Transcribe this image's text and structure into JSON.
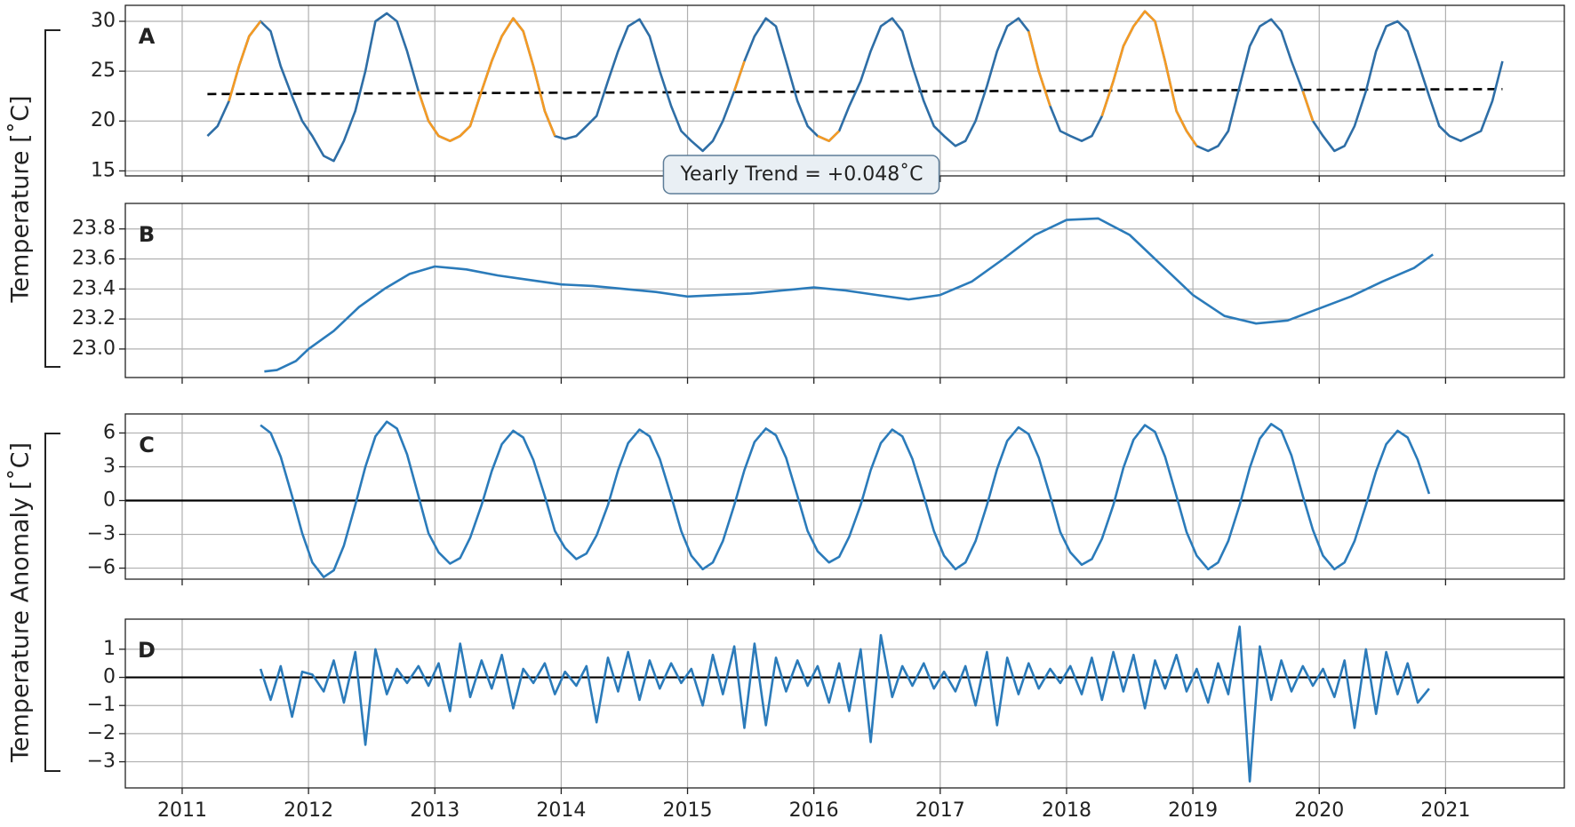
{
  "chart_data": [
    {
      "type": "line",
      "panel_label": "A",
      "x": [
        2011.2,
        2011.28,
        2011.37,
        2011.45,
        2011.53,
        2011.62,
        2011.7,
        2011.78,
        2011.87,
        2011.95,
        2012.03,
        2012.12,
        2012.2,
        2012.28,
        2012.37,
        2012.45,
        2012.53,
        2012.62,
        2012.7,
        2012.78,
        2012.87,
        2012.95,
        2013.03,
        2013.12,
        2013.2,
        2013.28,
        2013.37,
        2013.45,
        2013.53,
        2013.62,
        2013.7,
        2013.78,
        2013.87,
        2013.95,
        2014.03,
        2014.12,
        2014.2,
        2014.28,
        2014.37,
        2014.45,
        2014.53,
        2014.62,
        2014.7,
        2014.78,
        2014.87,
        2014.95,
        2015.03,
        2015.12,
        2015.2,
        2015.28,
        2015.37,
        2015.45,
        2015.53,
        2015.62,
        2015.7,
        2015.78,
        2015.87,
        2015.95,
        2016.03,
        2016.12,
        2016.2,
        2016.28,
        2016.37,
        2016.45,
        2016.53,
        2016.62,
        2016.7,
        2016.78,
        2016.87,
        2016.95,
        2017.03,
        2017.12,
        2017.2,
        2017.28,
        2017.37,
        2017.45,
        2017.53,
        2017.62,
        2017.7,
        2017.78,
        2017.87,
        2017.95,
        2018.03,
        2018.12,
        2018.2,
        2018.28,
        2018.37,
        2018.45,
        2018.53,
        2018.62,
        2018.7,
        2018.78,
        2018.87,
        2018.95,
        2019.03,
        2019.12,
        2019.2,
        2019.28,
        2019.37,
        2019.45,
        2019.53,
        2019.62,
        2019.7,
        2019.78,
        2019.87,
        2019.95,
        2020.03,
        2020.12,
        2020.2,
        2020.28,
        2020.37,
        2020.45,
        2020.53,
        2020.62,
        2020.7,
        2020.78,
        2020.87,
        2020.95,
        2021.03,
        2021.12,
        2021.2,
        2021.28,
        2021.37,
        2021.45
      ],
      "series": [
        {
          "color": "#2e6ea6",
          "values": [
            18.5,
            19.5,
            22,
            25.5,
            28.5,
            30,
            29,
            25.5,
            22.5,
            20,
            18.5,
            16.5,
            16,
            18,
            21,
            25,
            30,
            30.8,
            30,
            27,
            23,
            20,
            18.5,
            18,
            18.5,
            19.5,
            23,
            26,
            28.5,
            30.3,
            29,
            25.5,
            21,
            18.5,
            18.2,
            18.5,
            19.5,
            20.5,
            24,
            27,
            29.5,
            30.2,
            28.5,
            25,
            21.5,
            19,
            18,
            17,
            18,
            20,
            23,
            26,
            28.5,
            30.3,
            29.5,
            26,
            22,
            19.5,
            18.5,
            18,
            19,
            21.5,
            24,
            27,
            29.5,
            30.3,
            29,
            25.5,
            22,
            19.5,
            18.5,
            17.5,
            18,
            20,
            23.5,
            27,
            29.5,
            30.3,
            29,
            25,
            21.5,
            19,
            18.5,
            18,
            18.5,
            20.5,
            24,
            27.5,
            29.5,
            31,
            30,
            26,
            21,
            19,
            17.5,
            17,
            17.5,
            19,
            23.5,
            27.5,
            29.5,
            30.2,
            29,
            26,
            23,
            20,
            18.5,
            17,
            17.5,
            19.5,
            23,
            27,
            29.5,
            30,
            29,
            26,
            22.5,
            19.5,
            18.5,
            18,
            18.5,
            19,
            22,
            26
          ]
        },
        {
          "color": "#f59a23",
          "values": [
            null,
            null,
            22,
            25.5,
            28.5,
            30,
            null,
            null,
            null,
            null,
            null,
            null,
            null,
            null,
            null,
            null,
            null,
            null,
            null,
            null,
            23,
            20,
            18.5,
            18,
            18.5,
            19.5,
            23,
            26,
            28.5,
            30.3,
            29,
            25.5,
            21,
            18.5,
            null,
            null,
            null,
            null,
            null,
            null,
            null,
            null,
            null,
            null,
            null,
            null,
            null,
            null,
            null,
            null,
            23,
            26,
            null,
            null,
            null,
            null,
            null,
            null,
            18.5,
            18,
            19,
            null,
            null,
            null,
            null,
            null,
            null,
            null,
            null,
            null,
            null,
            null,
            null,
            null,
            null,
            null,
            null,
            null,
            29,
            25,
            21.5,
            null,
            null,
            null,
            null,
            20.5,
            24,
            27.5,
            29.5,
            31,
            30,
            26,
            21,
            19,
            17.5,
            null,
            null,
            null,
            null,
            null,
            null,
            null,
            null,
            null,
            23,
            20,
            null,
            null,
            null,
            null,
            null,
            null,
            null,
            null,
            null,
            null,
            null,
            null,
            null,
            null,
            null,
            null,
            null,
            null
          ]
        }
      ],
      "trend": {
        "x": [
          2011.2,
          2021.45
        ],
        "values": [
          22.7,
          23.2
        ],
        "color": "#000000"
      },
      "annotation": "Yearly Trend = +0.048˚C",
      "xlim": [
        2010.55,
        2021.94
      ],
      "xticks": [
        2011,
        2012,
        2013,
        2014,
        2015,
        2016,
        2017,
        2018,
        2019,
        2020,
        2021
      ],
      "show_xtick_labels": false,
      "ylim": [
        14.5,
        31.6
      ],
      "yticks": [
        15,
        20,
        25,
        30
      ],
      "grid": true
    },
    {
      "type": "line",
      "panel_label": "B",
      "x": [
        2011.65,
        2011.75,
        2011.9,
        2012.0,
        2012.2,
        2012.4,
        2012.6,
        2012.8,
        2013.0,
        2013.25,
        2013.5,
        2013.75,
        2014.0,
        2014.25,
        2014.5,
        2014.75,
        2015.0,
        2015.25,
        2015.5,
        2015.75,
        2016.0,
        2016.25,
        2016.5,
        2016.75,
        2017.0,
        2017.25,
        2017.5,
        2017.75,
        2018.0,
        2018.25,
        2018.5,
        2018.75,
        2019.0,
        2019.25,
        2019.5,
        2019.75,
        2020.0,
        2020.25,
        2020.5,
        2020.75,
        2020.9
      ],
      "series": [
        {
          "color": "#2b7bba",
          "values": [
            22.85,
            22.86,
            22.92,
            23.0,
            23.12,
            23.28,
            23.4,
            23.5,
            23.55,
            23.53,
            23.49,
            23.46,
            23.43,
            23.42,
            23.4,
            23.38,
            23.35,
            23.36,
            23.37,
            23.39,
            23.41,
            23.39,
            23.36,
            23.33,
            23.36,
            23.45,
            23.6,
            23.76,
            23.86,
            23.87,
            23.76,
            23.56,
            23.36,
            23.22,
            23.17,
            23.19,
            23.27,
            23.35,
            23.45,
            23.54,
            23.63
          ]
        }
      ],
      "xlim": [
        2010.55,
        2021.94
      ],
      "xticks": [
        2011,
        2012,
        2013,
        2014,
        2015,
        2016,
        2017,
        2018,
        2019,
        2020,
        2021
      ],
      "show_xtick_labels": false,
      "ylim": [
        22.81,
        23.97
      ],
      "yticks": [
        {
          "value": 23,
          "label": "23.0"
        },
        23.2,
        23.4,
        23.6,
        23.8
      ],
      "grid": true
    },
    {
      "type": "line",
      "panel_label": "C",
      "x": [
        2011.62,
        2011.7,
        2011.78,
        2011.87,
        2011.95,
        2012.03,
        2012.12,
        2012.2,
        2012.28,
        2012.37,
        2012.45,
        2012.53,
        2012.62,
        2012.7,
        2012.78,
        2012.87,
        2012.95,
        2013.03,
        2013.12,
        2013.2,
        2013.28,
        2013.37,
        2013.45,
        2013.53,
        2013.62,
        2013.7,
        2013.78,
        2013.87,
        2013.95,
        2014.03,
        2014.12,
        2014.2,
        2014.28,
        2014.37,
        2014.45,
        2014.53,
        2014.62,
        2014.7,
        2014.78,
        2014.87,
        2014.95,
        2015.03,
        2015.12,
        2015.2,
        2015.28,
        2015.37,
        2015.45,
        2015.53,
        2015.62,
        2015.7,
        2015.78,
        2015.87,
        2015.95,
        2016.03,
        2016.12,
        2016.2,
        2016.28,
        2016.37,
        2016.45,
        2016.53,
        2016.62,
        2016.7,
        2016.78,
        2016.87,
        2016.95,
        2017.03,
        2017.12,
        2017.2,
        2017.28,
        2017.37,
        2017.45,
        2017.53,
        2017.62,
        2017.7,
        2017.78,
        2017.87,
        2017.95,
        2018.03,
        2018.12,
        2018.2,
        2018.28,
        2018.37,
        2018.45,
        2018.53,
        2018.62,
        2018.7,
        2018.78,
        2018.87,
        2018.95,
        2019.03,
        2019.12,
        2019.2,
        2019.28,
        2019.37,
        2019.45,
        2019.53,
        2019.62,
        2019.7,
        2019.78,
        2019.87,
        2019.95,
        2020.03,
        2020.12,
        2020.2,
        2020.28,
        2020.37,
        2020.45,
        2020.53,
        2020.62,
        2020.7,
        2020.78,
        2020.87
      ],
      "series": [
        {
          "color": "#2b7bba",
          "values": [
            6.7,
            6.0,
            3.9,
            0.4,
            -2.9,
            -5.5,
            -6.8,
            -6.2,
            -4.0,
            -0.4,
            3.0,
            5.7,
            7.0,
            6.4,
            4.1,
            0.4,
            -2.9,
            -4.6,
            -5.6,
            -5.1,
            -3.3,
            -0.4,
            2.6,
            5.0,
            6.2,
            5.6,
            3.6,
            0.4,
            -2.7,
            -4.2,
            -5.2,
            -4.7,
            -3.1,
            -0.4,
            2.7,
            5.1,
            6.3,
            5.7,
            3.7,
            0.4,
            -2.7,
            -4.9,
            -6.1,
            -5.5,
            -3.6,
            -0.4,
            2.7,
            5.2,
            6.4,
            5.8,
            3.8,
            0.4,
            -2.7,
            -4.5,
            -5.5,
            -5.0,
            -3.2,
            -0.4,
            2.7,
            5.1,
            6.3,
            5.7,
            3.7,
            0.4,
            -2.7,
            -4.9,
            -6.1,
            -5.5,
            -3.6,
            -0.4,
            2.8,
            5.3,
            6.5,
            5.9,
            3.8,
            0.4,
            -2.8,
            -4.6,
            -5.7,
            -5.2,
            -3.4,
            -0.4,
            2.9,
            5.4,
            6.7,
            6.1,
            3.9,
            0.4,
            -2.8,
            -4.9,
            -6.1,
            -5.5,
            -3.6,
            -0.4,
            2.9,
            5.5,
            6.8,
            6.2,
            4.0,
            0.4,
            -2.6,
            -4.9,
            -6.1,
            -5.5,
            -3.6,
            -0.4,
            2.6,
            5.0,
            6.2,
            5.6,
            3.6,
            0.6
          ]
        }
      ],
      "hline": 0,
      "xlim": [
        2010.55,
        2021.94
      ],
      "xticks": [
        2011,
        2012,
        2013,
        2014,
        2015,
        2016,
        2017,
        2018,
        2019,
        2020,
        2021
      ],
      "show_xtick_labels": false,
      "ylim": [
        -6.98,
        7.69
      ],
      "yticks": [
        {
          "value": -6,
          "label": "−6"
        },
        {
          "value": -3,
          "label": "−3"
        },
        0,
        3,
        6
      ],
      "grid": true
    },
    {
      "type": "line",
      "panel_label": "D",
      "x": [
        2011.62,
        2011.7,
        2011.78,
        2011.87,
        2011.95,
        2012.03,
        2012.12,
        2012.2,
        2012.28,
        2012.37,
        2012.45,
        2012.53,
        2012.62,
        2012.7,
        2012.78,
        2012.87,
        2012.95,
        2013.03,
        2013.12,
        2013.2,
        2013.28,
        2013.37,
        2013.45,
        2013.53,
        2013.62,
        2013.7,
        2013.78,
        2013.87,
        2013.95,
        2014.03,
        2014.12,
        2014.2,
        2014.28,
        2014.37,
        2014.45,
        2014.53,
        2014.62,
        2014.7,
        2014.78,
        2014.87,
        2014.95,
        2015.03,
        2015.12,
        2015.2,
        2015.28,
        2015.37,
        2015.45,
        2015.53,
        2015.62,
        2015.7,
        2015.78,
        2015.87,
        2015.95,
        2016.03,
        2016.12,
        2016.2,
        2016.28,
        2016.37,
        2016.45,
        2016.53,
        2016.62,
        2016.7,
        2016.78,
        2016.87,
        2016.95,
        2017.03,
        2017.12,
        2017.2,
        2017.28,
        2017.37,
        2017.45,
        2017.53,
        2017.62,
        2017.7,
        2017.78,
        2017.87,
        2017.95,
        2018.03,
        2018.12,
        2018.2,
        2018.28,
        2018.37,
        2018.45,
        2018.53,
        2018.62,
        2018.7,
        2018.78,
        2018.87,
        2018.95,
        2019.03,
        2019.12,
        2019.2,
        2019.28,
        2019.37,
        2019.45,
        2019.53,
        2019.62,
        2019.7,
        2019.78,
        2019.87,
        2019.95,
        2020.03,
        2020.12,
        2020.2,
        2020.28,
        2020.37,
        2020.45,
        2020.53,
        2020.62,
        2020.7,
        2020.78,
        2020.87
      ],
      "series": [
        {
          "color": "#2b7bba",
          "values": [
            0.3,
            -0.8,
            0.4,
            -1.4,
            0.2,
            0.1,
            -0.5,
            0.6,
            -0.9,
            0.9,
            -2.4,
            1.0,
            -0.6,
            0.3,
            -0.2,
            0.4,
            -0.3,
            0.5,
            -1.2,
            1.2,
            -0.7,
            0.6,
            -0.4,
            0.8,
            -1.1,
            0.3,
            -0.2,
            0.5,
            -0.6,
            0.2,
            -0.3,
            0.4,
            -1.6,
            0.7,
            -0.5,
            0.9,
            -0.8,
            0.6,
            -0.4,
            0.5,
            -0.2,
            0.3,
            -1.0,
            0.8,
            -0.6,
            1.1,
            -1.8,
            1.2,
            -1.7,
            0.7,
            -0.5,
            0.6,
            -0.3,
            0.4,
            -0.9,
            0.5,
            -1.2,
            1.0,
            -2.3,
            1.5,
            -0.7,
            0.4,
            -0.3,
            0.5,
            -0.4,
            0.2,
            -0.5,
            0.4,
            -1.0,
            0.9,
            -1.7,
            0.7,
            -0.6,
            0.5,
            -0.4,
            0.3,
            -0.2,
            0.4,
            -0.6,
            0.7,
            -0.8,
            0.9,
            -0.5,
            0.8,
            -1.1,
            0.6,
            -0.4,
            0.8,
            -0.5,
            0.3,
            -0.9,
            0.5,
            -0.6,
            1.8,
            -3.7,
            1.1,
            -0.8,
            0.6,
            -0.5,
            0.4,
            -0.3,
            0.3,
            -0.7,
            0.6,
            -1.8,
            1.0,
            -1.3,
            0.9,
            -0.6,
            0.5,
            -0.9,
            -0.4
          ]
        }
      ],
      "hline": 0,
      "xlim": [
        2010.55,
        2021.94
      ],
      "xticks": [
        2011,
        2012,
        2013,
        2014,
        2015,
        2016,
        2017,
        2018,
        2019,
        2020,
        2021
      ],
      "show_xtick_labels": true,
      "ylim": [
        -3.93,
        2.07
      ],
      "yticks": [
        {
          "value": -3,
          "label": "−3"
        },
        {
          "value": -2,
          "label": "−2"
        },
        {
          "value": -1,
          "label": "−1"
        },
        0,
        1
      ],
      "grid": true
    }
  ],
  "group_labels": [
    "Temperature [˚C]",
    "Temperature Anomaly [˚C]"
  ]
}
